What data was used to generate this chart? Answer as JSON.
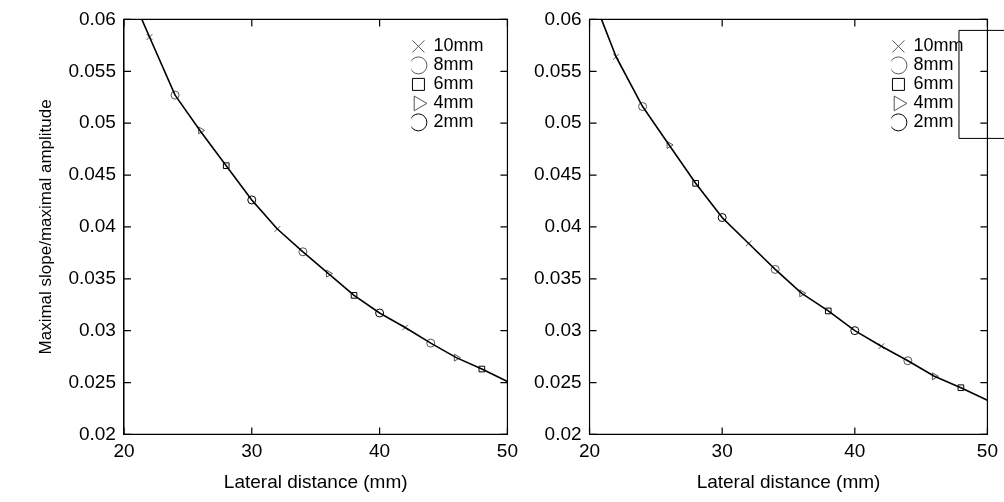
{
  "chart_data": [
    {
      "type": "scatter",
      "xlabel": "Lateral distance (mm)",
      "ylabel": "Maximal slope/maximal amplitude",
      "xlim": [
        20,
        50
      ],
      "xticks": [
        20,
        30,
        40,
        50
      ],
      "ylim": [
        0.02,
        0.06
      ],
      "yticks": [
        0.02,
        0.025,
        0.03,
        0.035,
        0.04,
        0.045,
        0.05,
        0.055,
        0.06
      ],
      "grid": false,
      "legend": "top right",
      "series": [
        {
          "type": "line",
          "color": "#000000",
          "marker": "none",
          "line_style": "solid",
          "x": [
            21.4,
            22,
            24,
            26,
            28,
            30,
            32,
            34,
            36,
            38,
            40,
            42,
            44,
            46,
            48,
            50
          ],
          "values": [
            0.06,
            0.0583,
            0.0527,
            0.0492,
            0.0459,
            0.0426,
            0.0398,
            0.0376,
            0.0355,
            0.0334,
            0.0317,
            0.0303,
            0.0288,
            0.0274,
            0.0263,
            0.0251
          ]
        },
        {
          "name": "10mm",
          "color": "#555555",
          "marker": "cross",
          "x": [
            22,
            32,
            42
          ],
          "values": [
            0.0583,
            0.0398,
            0.0303
          ]
        },
        {
          "name": "8mm",
          "color": "#555555",
          "marker": "circle",
          "x": [
            24,
            34,
            44
          ],
          "values": [
            0.0527,
            0.0376,
            0.0288
          ]
        },
        {
          "name": "6mm",
          "color": "#000000",
          "marker": "square",
          "x": [
            28,
            38,
            48
          ],
          "values": [
            0.0459,
            0.0334,
            0.0263
          ]
        },
        {
          "name": "4mm",
          "color": "#555555",
          "marker": "triangle",
          "x": [
            26,
            36,
            46
          ],
          "values": [
            0.0493,
            0.0355,
            0.0274
          ]
        },
        {
          "name": "2mm",
          "color": "#000000",
          "marker": "circle",
          "x": [
            30,
            40
          ],
          "values": [
            0.0426,
            0.0317
          ]
        }
      ]
    },
    {
      "type": "scatter",
      "xlabel": "Lateral distance (mm)",
      "xlim": [
        20,
        50
      ],
      "xticks": [
        20,
        30,
        40,
        50
      ],
      "ylim": [
        0.02,
        0.06
      ],
      "yticks": [
        0.02,
        0.025,
        0.03,
        0.035,
        0.04,
        0.045,
        0.05,
        0.055,
        0.06
      ],
      "grid": false,
      "legend": "top right",
      "series": [
        {
          "type": "line",
          "color": "#000000",
          "marker": "none",
          "line_style": "solid",
          "x": [
            20.9,
            22,
            24,
            26,
            28,
            30,
            32,
            34,
            36,
            38,
            40,
            42,
            44,
            46,
            48,
            50
          ],
          "values": [
            0.06,
            0.0564,
            0.0516,
            0.0479,
            0.0442,
            0.0409,
            0.0384,
            0.0359,
            0.0336,
            0.0319,
            0.03,
            0.0285,
            0.0271,
            0.0256,
            0.0245,
            0.0233
          ]
        },
        {
          "name": "10mm",
          "color": "#555555",
          "marker": "cross",
          "x": [
            22,
            32,
            42
          ],
          "values": [
            0.0564,
            0.0384,
            0.0285
          ]
        },
        {
          "name": "8mm",
          "color": "#555555",
          "marker": "circle",
          "x": [
            24,
            34,
            44
          ],
          "values": [
            0.0516,
            0.0359,
            0.0271
          ]
        },
        {
          "name": "6mm",
          "color": "#000000",
          "marker": "square",
          "x": [
            28,
            38,
            48
          ],
          "values": [
            0.0442,
            0.0319,
            0.0245
          ]
        },
        {
          "name": "4mm",
          "color": "#555555",
          "marker": "triangle",
          "x": [
            26,
            36,
            46
          ],
          "values": [
            0.0479,
            0.0336,
            0.0256
          ]
        },
        {
          "name": "2mm",
          "color": "#000000",
          "marker": "circle",
          "x": [
            30,
            40
          ],
          "values": [
            0.0409,
            0.03
          ]
        }
      ]
    }
  ]
}
